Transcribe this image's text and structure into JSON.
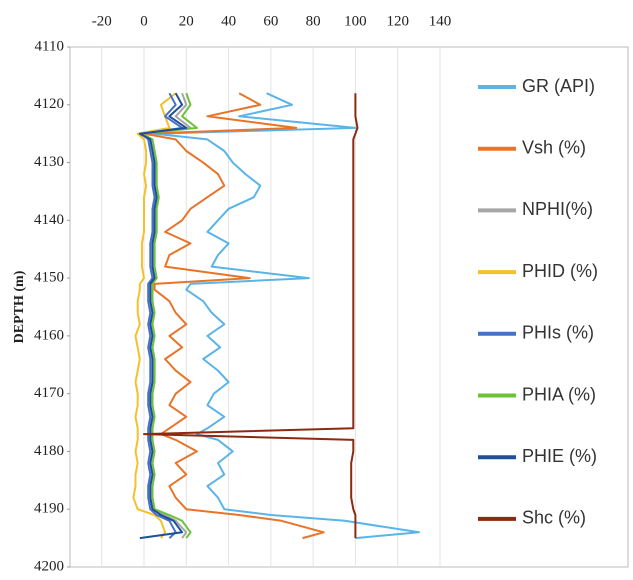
{
  "chart_data": {
    "type": "line",
    "ylabel": "DEPTH (m)",
    "y": [
      4118,
      4120,
      4122,
      4124,
      4125,
      4126,
      4128,
      4130,
      4132,
      4134,
      4136,
      4138,
      4140,
      4142,
      4144,
      4146,
      4148,
      4150,
      4151,
      4152,
      4154,
      4156,
      4158,
      4160,
      4162,
      4164,
      4166,
      4168,
      4170,
      4172,
      4174,
      4176,
      4177,
      4178,
      4180,
      4182,
      4184,
      4186,
      4188,
      4190,
      4191,
      4192,
      4194,
      4195
    ],
    "xlim": [
      -35,
      140
    ],
    "xticks": [
      -20,
      0,
      20,
      40,
      60,
      80,
      100,
      120,
      140
    ],
    "ylim": [
      4200,
      4110
    ],
    "yticks": [
      4110,
      4120,
      4130,
      4140,
      4150,
      4160,
      4170,
      4180,
      4190,
      4200
    ],
    "grid": "x",
    "legend": "right",
    "series": [
      {
        "name": "GR (API)",
        "color": "#5ab4e8",
        "values": [
          58,
          70,
          45,
          100,
          5,
          30,
          38,
          42,
          48,
          55,
          52,
          40,
          35,
          30,
          40,
          35,
          32,
          78,
          22,
          20,
          28,
          32,
          38,
          30,
          36,
          28,
          35,
          40,
          33,
          30,
          38,
          30,
          25,
          35,
          42,
          35,
          38,
          30,
          35,
          38,
          60,
          95,
          130,
          100
        ]
      },
      {
        "name": "Vsh (%)",
        "color": "#e8742a",
        "values": [
          45,
          55,
          30,
          72,
          0,
          15,
          20,
          28,
          35,
          38,
          30,
          22,
          18,
          10,
          22,
          12,
          10,
          50,
          5,
          5,
          12,
          15,
          20,
          12,
          18,
          10,
          15,
          22,
          15,
          12,
          20,
          12,
          8,
          15,
          25,
          15,
          20,
          12,
          15,
          20,
          45,
          65,
          85,
          75
        ]
      },
      {
        "name": "NPHI(%)",
        "color": "#a6a6a6",
        "values": [
          18,
          20,
          15,
          22,
          -2,
          3,
          4,
          5,
          5,
          5,
          6,
          5,
          5,
          5,
          4,
          4,
          4,
          5,
          3,
          3,
          3,
          4,
          3,
          4,
          3,
          4,
          4,
          4,
          3,
          3,
          4,
          3,
          3,
          3,
          4,
          3,
          4,
          3,
          3,
          4,
          10,
          15,
          20,
          18
        ]
      },
      {
        "name": "PHID (%)",
        "color": "#f5c02a",
        "values": [
          15,
          8,
          10,
          12,
          -3,
          0,
          1,
          1,
          0,
          1,
          0,
          0,
          0,
          0,
          -1,
          -1,
          -1,
          0,
          -2,
          -2,
          -3,
          -3,
          -2,
          -4,
          -3,
          -2,
          -3,
          -4,
          -3,
          -3,
          -4,
          -3,
          -3,
          -3,
          -4,
          -3,
          -4,
          -4,
          -5,
          -3,
          5,
          8,
          10,
          8
        ]
      },
      {
        "name": "PHIs (%)",
        "color": "#4472c4",
        "values": [
          12,
          15,
          10,
          18,
          -1,
          2,
          3,
          4,
          4,
          4,
          5,
          4,
          4,
          4,
          3,
          3,
          3,
          4,
          2,
          2,
          2,
          3,
          2,
          3,
          2,
          3,
          3,
          3,
          2,
          2,
          3,
          2,
          2,
          2,
          3,
          2,
          3,
          2,
          2,
          3,
          6,
          12,
          15,
          12
        ]
      },
      {
        "name": "PHIA (%)",
        "color": "#6cc33a",
        "values": [
          20,
          22,
          18,
          25,
          -1,
          4,
          5,
          6,
          6,
          6,
          7,
          6,
          6,
          6,
          5,
          5,
          5,
          6,
          4,
          4,
          4,
          5,
          4,
          5,
          4,
          5,
          5,
          5,
          4,
          4,
          5,
          4,
          4,
          4,
          5,
          4,
          5,
          4,
          4,
          5,
          12,
          18,
          22,
          20
        ]
      },
      {
        "name": "PHIE (%)",
        "color": "#1f4e9a",
        "values": [
          15,
          18,
          12,
          20,
          -2,
          3,
          4,
          5,
          5,
          5,
          6,
          5,
          5,
          5,
          4,
          4,
          4,
          5,
          3,
          3,
          3,
          4,
          3,
          4,
          3,
          4,
          4,
          4,
          3,
          3,
          4,
          3,
          3,
          3,
          4,
          3,
          4,
          3,
          3,
          4,
          8,
          14,
          18,
          -2
        ]
      },
      {
        "name": "Shc (%)",
        "color": "#8b2a10",
        "values": [
          100,
          100,
          100,
          101,
          100,
          99,
          99,
          99,
          99,
          99,
          99,
          99,
          99,
          99,
          99,
          99,
          99,
          99,
          99,
          99,
          99,
          99,
          99,
          99,
          99,
          99,
          99,
          99,
          99,
          99,
          99,
          99,
          0,
          99,
          99,
          98,
          98,
          98,
          98,
          99,
          100,
          100,
          100,
          100
        ]
      }
    ]
  }
}
